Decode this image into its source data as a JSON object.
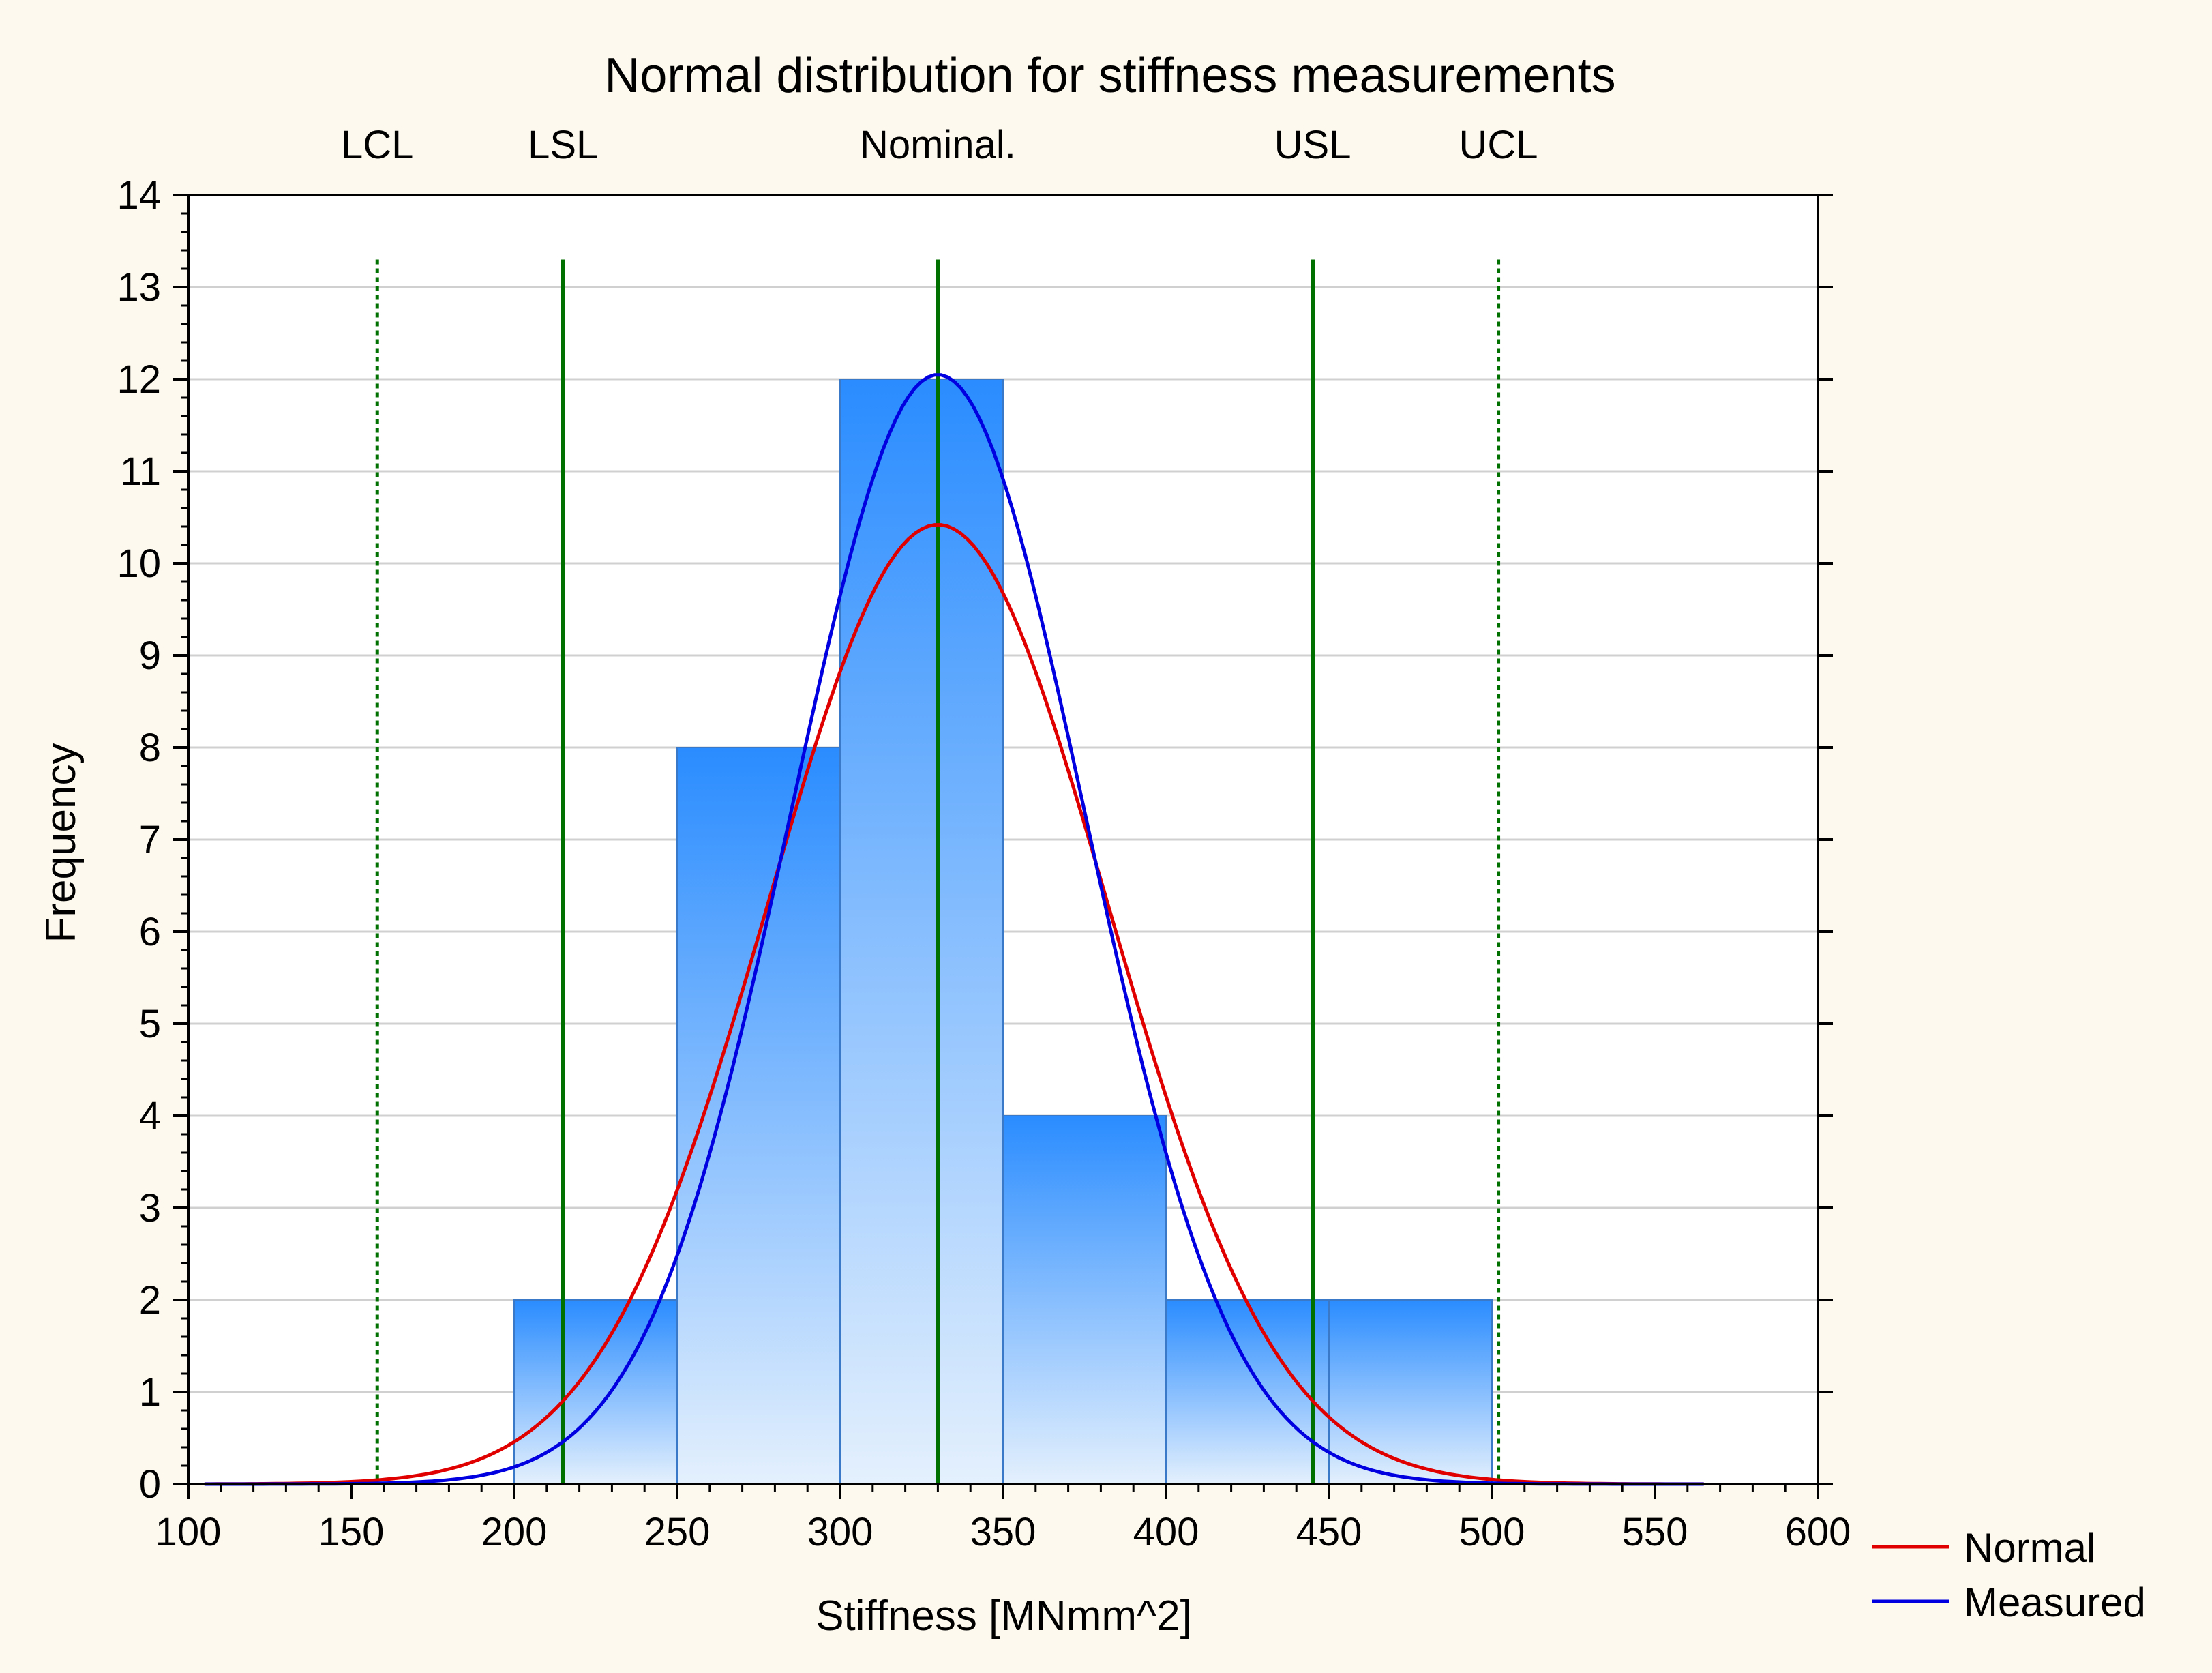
{
  "chart_data": {
    "type": "bar",
    "title": "Normal distribution for stiffness measurements",
    "xlabel": "Stiffness [MNmm^2]",
    "ylabel": "Frequency",
    "xlim": [
      100,
      600
    ],
    "ylim": [
      0,
      14
    ],
    "x_ticks": [
      100,
      150,
      200,
      250,
      300,
      350,
      400,
      450,
      500,
      550,
      600
    ],
    "y_ticks": [
      0,
      1,
      2,
      3,
      4,
      5,
      6,
      7,
      8,
      9,
      10,
      11,
      12,
      13,
      14
    ],
    "grid": true,
    "legend_position": "bottom-right outside",
    "bins": [
      {
        "from": 200,
        "to": 250,
        "value": 2
      },
      {
        "from": 250,
        "to": 300,
        "value": 8
      },
      {
        "from": 300,
        "to": 350,
        "value": 12
      },
      {
        "from": 350,
        "to": 400,
        "value": 4
      },
      {
        "from": 400,
        "to": 450,
        "value": 2
      },
      {
        "from": 450,
        "to": 500,
        "value": 2
      }
    ],
    "curves": [
      {
        "name": "Normal",
        "color": "#e00000",
        "mean": 330,
        "peak": 10.42,
        "sigma": 52
      },
      {
        "name": "Measured",
        "color": "#0000e0",
        "mean": 330,
        "peak": 12.05,
        "sigma": 45
      }
    ],
    "reference_lines": [
      {
        "label": "LCL",
        "x": 158,
        "style": "dotted"
      },
      {
        "label": "LSL",
        "x": 215,
        "style": "solid"
      },
      {
        "label": "Nominal.",
        "x": 330,
        "style": "solid"
      },
      {
        "label": "USL",
        "x": 445,
        "style": "solid"
      },
      {
        "label": "UCL",
        "x": 502,
        "style": "dotted"
      }
    ],
    "reference_top": 13.3,
    "colors": {
      "background": "#fdf9ee",
      "plot_background": "#ffffff",
      "bar_top": "#2a8cff",
      "bar_bottom": "#e4f0fd",
      "bar_edge": "#3a78c8",
      "reference_line": "#007000",
      "grid": "#d0d0d0"
    }
  }
}
